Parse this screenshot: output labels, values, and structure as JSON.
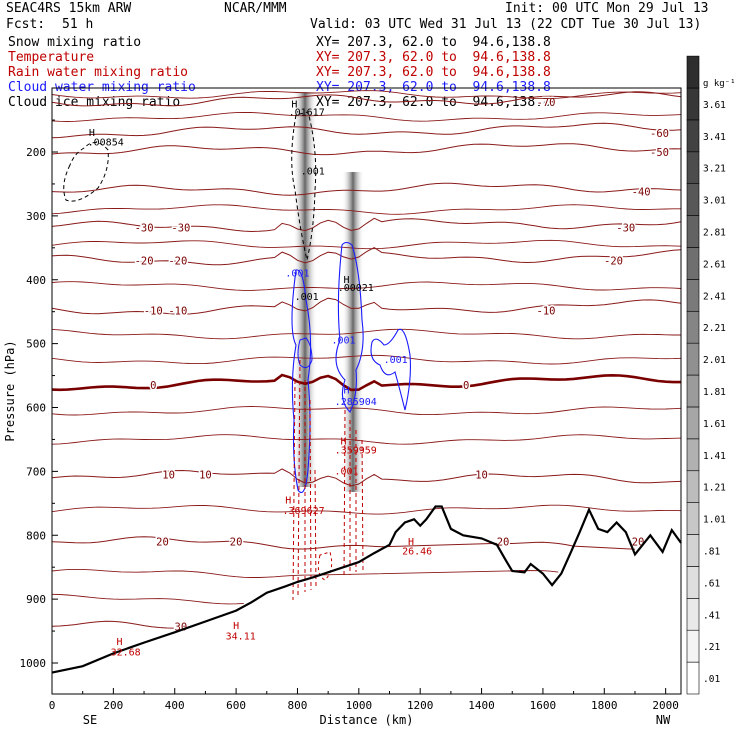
{
  "header": {
    "model": "SEAC4RS 15km ARW",
    "org": "NCAR/MMM",
    "init": "Init: 00 UTC Mon 29 Jul 13",
    "fcst_label": "Fcst:",
    "fcst_value": "51 h",
    "valid": "Valid: 03 UTC Wed 31 Jul 13 (22 CDT Tue 30 Jul 13)"
  },
  "legend": [
    {
      "label": "Snow mixing ratio",
      "color": "#000000",
      "xy": "XY= 207.3, 62.0 to  94.6,138.8"
    },
    {
      "label": "Temperature",
      "color": "#c00000",
      "xy": "XY= 207.3, 62.0 to  94.6,138.8"
    },
    {
      "label": "Rain water mixing ratio",
      "color": "#c00000",
      "xy": "XY= 207.3, 62.0 to  94.6,138.8"
    },
    {
      "label": "Cloud water mixing ratio",
      "color": "#1a1aff",
      "xy": "XY= 207.3, 62.0 to  94.6,138.8"
    },
    {
      "label": "Cloud ice mixing ratio",
      "color": "#000000",
      "xy": "XY= 207.3, 62.0 to  94.6,138.8"
    }
  ],
  "chart_data": {
    "type": "cross-section",
    "xlabel": "Distance (km)",
    "ylabel": "Pressure (hPa)",
    "xlim": [
      0,
      2050
    ],
    "ylim_pressure": [
      1050,
      100
    ],
    "xticks": [
      0,
      200,
      400,
      600,
      800,
      1000,
      1200,
      1400,
      1600,
      1800,
      2000
    ],
    "yticks": [
      200,
      300,
      400,
      500,
      600,
      700,
      800,
      900,
      1000
    ],
    "x_end_labels": {
      "left": "SE",
      "right": "NW"
    },
    "colorbar": {
      "unit": "g kg⁻¹",
      "levels": [
        ".01",
        ".21",
        ".41",
        ".61",
        ".81",
        "1.01",
        "1.21",
        "1.41",
        "1.61",
        "1.81",
        "2.01",
        "2.21",
        "2.41",
        "2.61",
        "2.81",
        "3.01",
        "3.21",
        "3.41",
        "3.61"
      ]
    },
    "terrain_profile": [
      [
        0,
        1015
      ],
      [
        100,
        1005
      ],
      [
        200,
        985
      ],
      [
        300,
        968
      ],
      [
        400,
        952
      ],
      [
        500,
        935
      ],
      [
        600,
        918
      ],
      [
        650,
        905
      ],
      [
        700,
        890
      ],
      [
        760,
        880
      ],
      [
        800,
        873
      ],
      [
        850,
        866
      ],
      [
        900,
        858
      ],
      [
        950,
        850
      ],
      [
        1000,
        842
      ],
      [
        1050,
        828
      ],
      [
        1100,
        815
      ],
      [
        1120,
        795
      ],
      [
        1150,
        780
      ],
      [
        1180,
        775
      ],
      [
        1200,
        785
      ],
      [
        1220,
        775
      ],
      [
        1250,
        755
      ],
      [
        1270,
        755
      ],
      [
        1300,
        790
      ],
      [
        1340,
        800
      ],
      [
        1400,
        805
      ],
      [
        1450,
        815
      ],
      [
        1480,
        840
      ],
      [
        1500,
        856
      ],
      [
        1540,
        858
      ],
      [
        1560,
        845
      ],
      [
        1600,
        860
      ],
      [
        1630,
        878
      ],
      [
        1660,
        860
      ],
      [
        1690,
        828
      ],
      [
        1720,
        795
      ],
      [
        1750,
        760
      ],
      [
        1780,
        790
      ],
      [
        1810,
        795
      ],
      [
        1840,
        780
      ],
      [
        1870,
        795
      ],
      [
        1900,
        830
      ],
      [
        1950,
        800
      ],
      [
        1990,
        826
      ],
      [
        2020,
        792
      ],
      [
        2050,
        812
      ]
    ],
    "temperature_contours": [
      {
        "label": "-70",
        "p": 122,
        "label_xs": [
          1610
        ]
      },
      {
        "label": "-60",
        "p": 170,
        "label_xs": [
          1980
        ]
      },
      {
        "label": "-50",
        "p": 200,
        "label_xs": [
          1980
        ]
      },
      {
        "label": "-40",
        "p": 262,
        "label_xs": [
          1920
        ]
      },
      {
        "label": "-30",
        "p": 318,
        "label_xs": [
          300,
          420,
          1870
        ]
      },
      {
        "label": "-20",
        "p": 370,
        "label_xs": [
          300,
          410,
          1830
        ]
      },
      {
        "label": "-10",
        "p": 448,
        "label_xs": [
          330,
          410,
          1610
        ]
      },
      {
        "label": "0",
        "p": 565,
        "label_xs": [
          330,
          1350
        ],
        "bold": true
      },
      {
        "label": "10",
        "p": 705,
        "label_xs": [
          380,
          500,
          1400
        ]
      },
      {
        "label": "20",
        "p": 810,
        "label_xs": [
          360,
          600,
          1470,
          1910
        ]
      },
      {
        "label": "30",
        "p": 943,
        "label_xs": [
          420
        ]
      }
    ],
    "extrema_labels": [
      {
        "text": "H",
        "x": 130,
        "p": 175,
        "color": "black"
      },
      {
        "text": ".00854",
        "x": 175,
        "p": 190,
        "color": "black"
      },
      {
        "text": "H",
        "x": 790,
        "p": 130,
        "color": "black"
      },
      {
        "text": ".01617",
        "x": 830,
        "p": 143,
        "color": "black"
      },
      {
        "text": ".001",
        "x": 850,
        "p": 235,
        "color": "black"
      },
      {
        "text": "H",
        "x": 960,
        "p": 405,
        "color": "black"
      },
      {
        "text": ".00021",
        "x": 990,
        "p": 418,
        "color": "black"
      },
      {
        "text": ".001",
        "x": 1120,
        "p": 530,
        "color": "blue"
      },
      {
        "text": ".001",
        "x": 950,
        "p": 500,
        "color": "blue"
      },
      {
        "text": ".001",
        "x": 800,
        "p": 395,
        "color": "blue"
      },
      {
        "text": ".001",
        "x": 830,
        "p": 432,
        "color": "black"
      },
      {
        "text": ".001",
        "x": 960,
        "p": 705,
        "color": "red"
      },
      {
        "text": "H",
        "x": 960,
        "p": 578,
        "color": "blue"
      },
      {
        "text": ".285904",
        "x": 990,
        "p": 596,
        "color": "blue"
      },
      {
        "text": "H",
        "x": 950,
        "p": 658,
        "color": "red"
      },
      {
        "text": ".359959",
        "x": 990,
        "p": 672,
        "color": "red"
      },
      {
        "text": "H",
        "x": 770,
        "p": 750,
        "color": "red"
      },
      {
        "text": ".369627",
        "x": 820,
        "p": 767,
        "color": "red"
      },
      {
        "text": "H",
        "x": 1170,
        "p": 815,
        "color": "red"
      },
      {
        "text": "26.46",
        "x": 1190,
        "p": 830,
        "color": "red"
      },
      {
        "text": "H",
        "x": 600,
        "p": 947,
        "color": "red"
      },
      {
        "text": "34.11",
        "x": 615,
        "p": 963,
        "color": "red"
      },
      {
        "text": "H",
        "x": 220,
        "p": 972,
        "color": "red"
      },
      {
        "text": "32.68",
        "x": 240,
        "p": 988,
        "color": "red"
      }
    ]
  }
}
